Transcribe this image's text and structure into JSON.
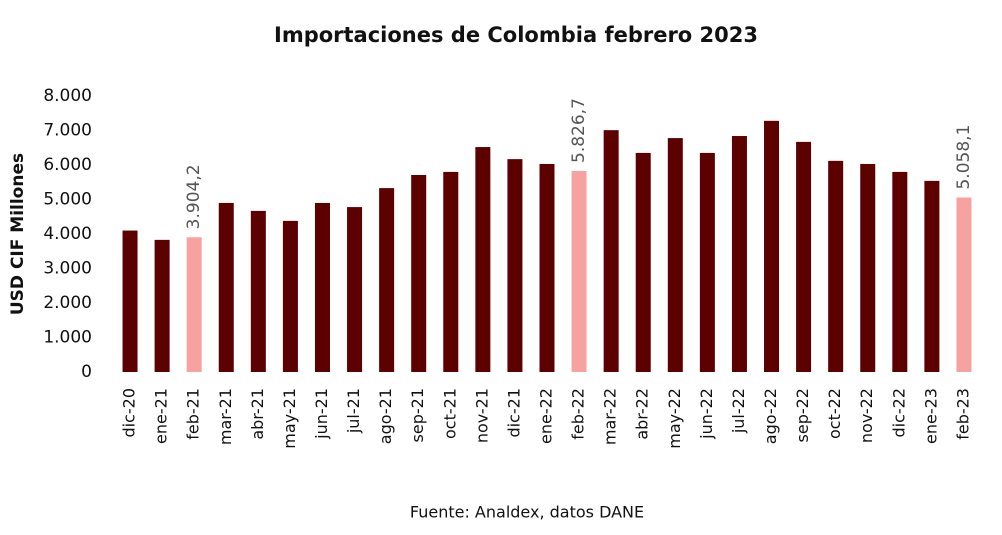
{
  "chart_data": {
    "type": "bar",
    "title": "Importaciones de Colombia febrero 2023",
    "y_label": "USD CIF Millones",
    "source": "Fuente: Analdex, datos DANE",
    "categories": [
      "dic-20",
      "ene-21",
      "feb-21",
      "mar-21",
      "abr-21",
      "may-21",
      "jun-21",
      "jul-21",
      "ago-21",
      "sep-21",
      "oct-21",
      "nov-21",
      "dic-21",
      "ene-22",
      "feb-22",
      "mar-22",
      "abr-22",
      "may-22",
      "jun-22",
      "jul-22",
      "ago-22",
      "sep-22",
      "oct-22",
      "nov-22",
      "dic-22",
      "ene-23",
      "feb-23"
    ],
    "values": [
      4100,
      3830,
      3904.2,
      4900,
      4670,
      4380,
      4900,
      4780,
      5330,
      5710,
      5800,
      6520,
      6170,
      6030,
      5826.7,
      7010,
      6350,
      6780,
      6350,
      6840,
      7280,
      6670,
      6120,
      6030,
      5800,
      5540,
      5058.1
    ],
    "value_labels": [
      null,
      null,
      "3.904,2",
      null,
      null,
      null,
      null,
      null,
      null,
      null,
      null,
      null,
      null,
      null,
      "5.826,7",
      null,
      null,
      null,
      null,
      null,
      null,
      null,
      null,
      null,
      null,
      null,
      "5.058,1"
    ],
    "colors": [
      "#5c0000",
      "#5c0000",
      "#f7a1a1",
      "#5c0000",
      "#5c0000",
      "#5c0000",
      "#5c0000",
      "#5c0000",
      "#5c0000",
      "#5c0000",
      "#5c0000",
      "#5c0000",
      "#5c0000",
      "#5c0000",
      "#f7a1a1",
      "#5c0000",
      "#5c0000",
      "#5c0000",
      "#5c0000",
      "#5c0000",
      "#5c0000",
      "#5c0000",
      "#5c0000",
      "#5c0000",
      "#5c0000",
      "#5c0000",
      "#f7a1a1"
    ],
    "ylim": [
      0,
      8000
    ],
    "yticks": [
      0,
      {
        "value": 1000,
        "label": "1.000"
      },
      {
        "value": 2000,
        "label": "2.000"
      },
      {
        "value": 3000,
        "label": "3.000"
      },
      {
        "value": 4000,
        "label": "4.000"
      },
      {
        "value": 5000,
        "label": "5.000"
      },
      {
        "value": 6000,
        "label": "6.000"
      },
      {
        "value": 7000,
        "label": "7.000"
      },
      {
        "value": 8000,
        "label": "8.000"
      }
    ],
    "grid": false
  }
}
